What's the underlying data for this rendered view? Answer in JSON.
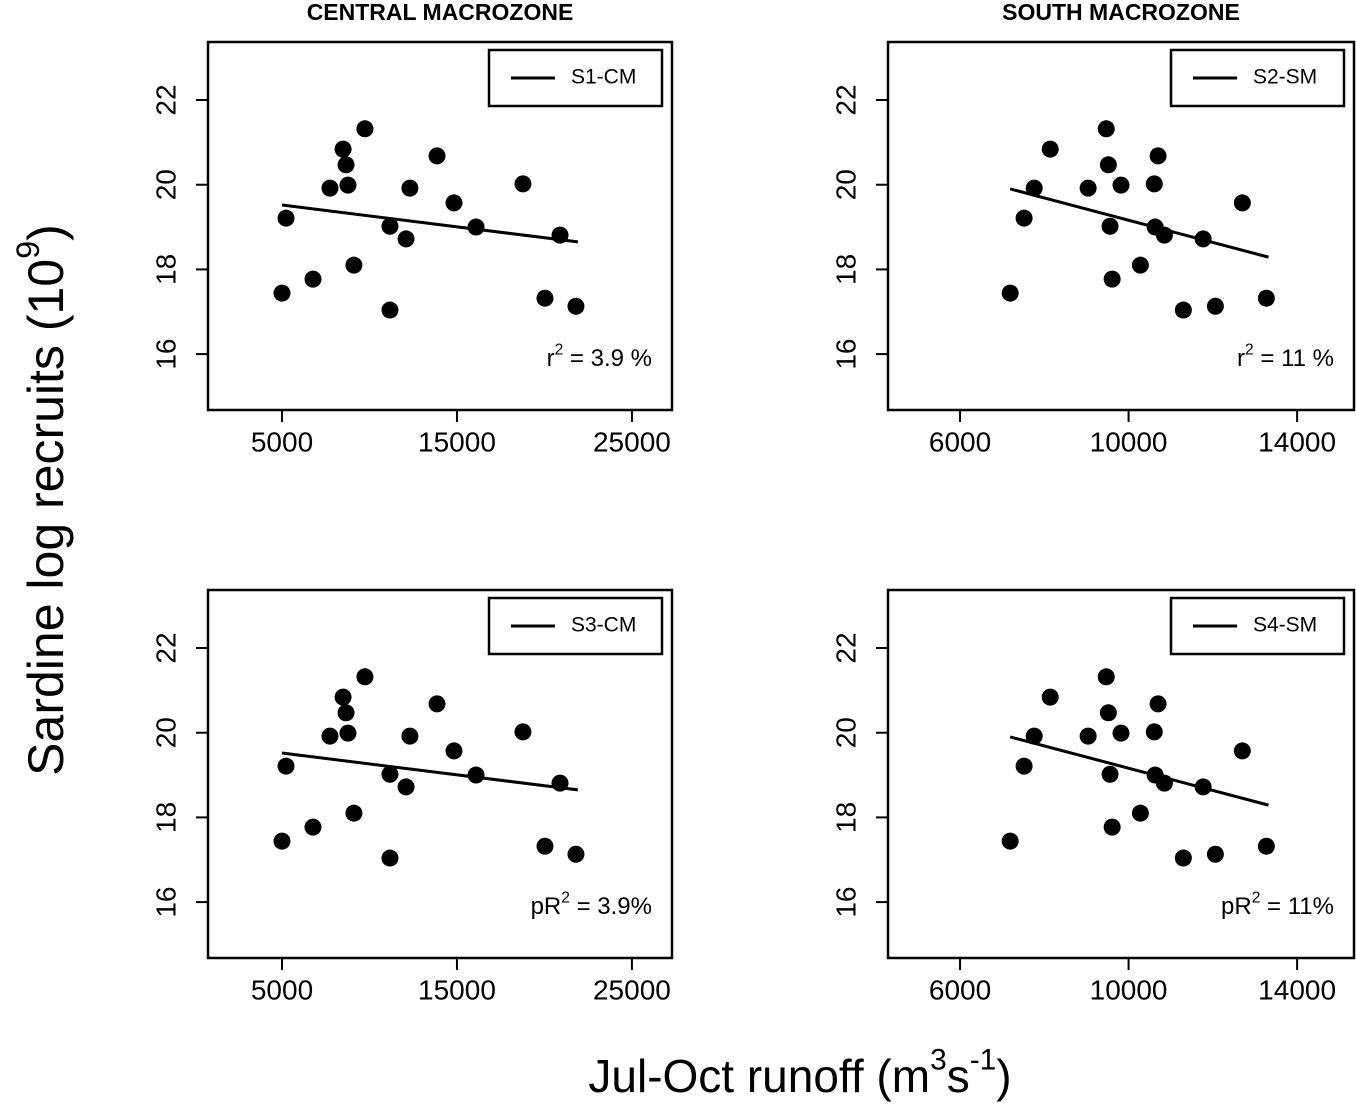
{
  "column_titles": [
    "CENTRAL MACROZONE",
    "SOUTH MACROZONE"
  ],
  "y_label": [
    "Sardine log recruits (10",
    "9",
    ")"
  ],
  "x_label": [
    "Jul-Oct runoff (m",
    "3",
    "s",
    "-1",
    ")"
  ],
  "chart_data": [
    {
      "type": "scatter",
      "legend": "top-right",
      "series": [
        {
          "name": "S1-CM",
          "color": "#000000",
          "x": [
            5000,
            21910
          ],
          "values": [
            19.52,
            18.65
          ]
        },
        {
          "color": "#000000",
          "x": [
            5000,
            5230,
            6770,
            7740,
            8490,
            8660,
            8770,
            9110,
            9740,
            11170,
            11170,
            12090,
            12310,
            13860,
            14830,
            16090,
            18770,
            20030,
            20890,
            21800
          ],
          "values": [
            17.44,
            19.21,
            17.77,
            19.92,
            20.84,
            20.47,
            19.99,
            18.1,
            21.32,
            19.02,
            17.04,
            18.72,
            19.92,
            20.68,
            19.57,
            19.0,
            20.02,
            17.32,
            18.81,
            17.13
          ]
        }
      ],
      "annotation": [
        "r",
        "2",
        " = 3.9 %"
      ],
      "xlim": [
        770,
        27290
      ],
      "ylim": [
        14.68,
        23.37
      ],
      "xticks": [
        5000,
        15000,
        25000
      ],
      "yticks": [
        16,
        18,
        20,
        22
      ]
    },
    {
      "type": "scatter",
      "legend": "top-right",
      "series": [
        {
          "name": "S2-SM",
          "color": "#000000",
          "x": [
            7190,
            13320
          ],
          "values": [
            19.9,
            18.29
          ]
        },
        {
          "color": "#000000",
          "x": [
            7190,
            7520,
            7760,
            8140,
            9040,
            9470,
            9520,
            9560,
            9610,
            9820,
            10280,
            10610,
            10630,
            10700,
            10850,
            11300,
            11770,
            12060,
            12700,
            13270
          ],
          "values": [
            17.44,
            19.21,
            19.92,
            20.84,
            19.92,
            21.32,
            20.47,
            19.02,
            17.77,
            19.99,
            18.1,
            20.02,
            19.0,
            20.68,
            18.81,
            17.04,
            18.72,
            17.13,
            19.57,
            17.32
          ]
        }
      ],
      "annotation": [
        "r",
        "2",
        " = 11 %"
      ],
      "xlim": [
        4290,
        15350
      ],
      "ylim": [
        14.68,
        23.37
      ],
      "xticks": [
        6000,
        10000,
        14000
      ],
      "yticks": [
        16,
        18,
        20,
        22
      ]
    },
    {
      "type": "scatter",
      "legend": "top-right",
      "series": [
        {
          "name": "S3-CM",
          "color": "#000000",
          "x": [
            5000,
            21910
          ],
          "values": [
            19.52,
            18.65
          ]
        },
        {
          "color": "#000000",
          "x": [
            5000,
            5230,
            6770,
            7740,
            8490,
            8660,
            8770,
            9110,
            9740,
            11170,
            11170,
            12090,
            12310,
            13860,
            14830,
            16090,
            18770,
            20030,
            20890,
            21800
          ],
          "values": [
            17.44,
            19.21,
            17.77,
            19.92,
            20.84,
            20.47,
            19.99,
            18.1,
            21.32,
            19.02,
            17.04,
            18.72,
            19.92,
            20.68,
            19.57,
            19.0,
            20.02,
            17.32,
            18.81,
            17.13
          ]
        }
      ],
      "annotation": [
        "pR",
        "2",
        " = 3.9%"
      ],
      "xlim": [
        770,
        27290
      ],
      "ylim": [
        14.68,
        23.37
      ],
      "xticks": [
        5000,
        15000,
        25000
      ],
      "yticks": [
        16,
        18,
        20,
        22
      ]
    },
    {
      "type": "scatter",
      "legend": "top-right",
      "series": [
        {
          "name": "S4-SM",
          "color": "#000000",
          "x": [
            7190,
            13320
          ],
          "values": [
            19.9,
            18.29
          ]
        },
        {
          "color": "#000000",
          "x": [
            7190,
            7520,
            7760,
            8140,
            9040,
            9470,
            9520,
            9560,
            9610,
            9820,
            10280,
            10610,
            10630,
            10700,
            10850,
            11300,
            11770,
            12060,
            12700,
            13270
          ],
          "values": [
            17.44,
            19.21,
            19.92,
            20.84,
            19.92,
            21.32,
            20.47,
            19.02,
            17.77,
            19.99,
            18.1,
            20.02,
            19.0,
            20.68,
            18.81,
            17.04,
            18.72,
            17.13,
            19.57,
            17.32
          ]
        }
      ],
      "annotation": [
        "pR",
        "2",
        " = 11%"
      ],
      "xlim": [
        4290,
        15350
      ],
      "ylim": [
        14.68,
        23.37
      ],
      "xticks": [
        6000,
        10000,
        14000
      ],
      "yticks": [
        16,
        18,
        20,
        22
      ]
    }
  ]
}
